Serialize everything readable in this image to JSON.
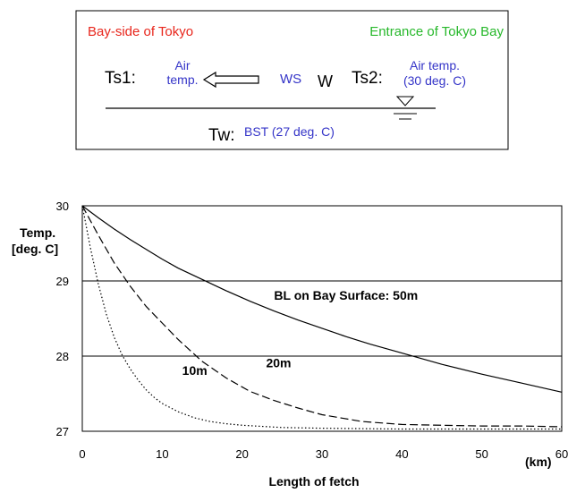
{
  "diagram": {
    "left_title": "Bay-side of Tokyo",
    "right_title": "Entrance of Tokyo Bay",
    "ts1_label": "Ts1:",
    "ts1_value_line1": "Air",
    "ts1_value_line2": "temp.",
    "ws_label": "WS",
    "w_label": "W",
    "ts2_label": "Ts2:",
    "ts2_value_line1": "Air temp.",
    "ts2_value_line2": "(30 deg. C)",
    "tw_label": "Tw:",
    "tw_value": "BST (27 deg. C)",
    "colors": {
      "left_title": "#e8261c",
      "right_title": "#27b82b",
      "values": "#3434c8"
    },
    "icons": [
      "left-arrow-icon",
      "water-level-icon"
    ]
  },
  "chart_data": {
    "type": "line",
    "ylabel_line1": "Temp.",
    "ylabel_line2": "[deg. C]",
    "xlabel": "Length of fetch",
    "x_unit": "(km)",
    "xlim": [
      0,
      60
    ],
    "ylim": [
      27,
      30
    ],
    "x_ticks": [
      "0",
      "10",
      "20",
      "30",
      "40",
      "50",
      "60"
    ],
    "y_ticks": [
      "27",
      "28",
      "29",
      "30"
    ],
    "gridlines_y": [
      28,
      29
    ],
    "annotations": [
      {
        "text": "BL on Bay Surface: 50m",
        "x": 24,
        "y": 28.75
      },
      {
        "text": "20m",
        "x": 23,
        "y": 27.85
      },
      {
        "text": "10m",
        "x": 12.5,
        "y": 27.75
      }
    ],
    "series": [
      {
        "style": "solid",
        "x": [
          0,
          2,
          4,
          6,
          8,
          10,
          12,
          15,
          18,
          21,
          24,
          27,
          30,
          33,
          36,
          40,
          45,
          50,
          55,
          60
        ],
        "y": [
          30,
          29.84,
          29.69,
          29.55,
          29.42,
          29.29,
          29.17,
          29.02,
          28.87,
          28.73,
          28.6,
          28.48,
          28.37,
          28.26,
          28.16,
          28.04,
          27.89,
          27.76,
          27.64,
          27.52
        ]
      },
      {
        "style": "dashed",
        "x": [
          0,
          2,
          4,
          6,
          8,
          10,
          12,
          15,
          18,
          21,
          24,
          27,
          30,
          35,
          40,
          45,
          50,
          55,
          60
        ],
        "y": [
          30,
          29.61,
          29.24,
          28.93,
          28.66,
          28.44,
          28.22,
          27.93,
          27.71,
          27.53,
          27.41,
          27.31,
          27.22,
          27.13,
          27.09,
          27.08,
          27.07,
          27.07,
          27.06
        ]
      },
      {
        "style": "dotted",
        "x": [
          0,
          1,
          2,
          3,
          4,
          5,
          6,
          7,
          8,
          9,
          10,
          12,
          14,
          16,
          18,
          20,
          25,
          30,
          40,
          50,
          60
        ],
        "y": [
          30,
          29.45,
          28.96,
          28.56,
          28.25,
          28.01,
          27.83,
          27.68,
          27.55,
          27.45,
          27.37,
          27.26,
          27.18,
          27.13,
          27.1,
          27.08,
          27.05,
          27.04,
          27.03,
          27.03,
          27.03
        ]
      }
    ]
  }
}
